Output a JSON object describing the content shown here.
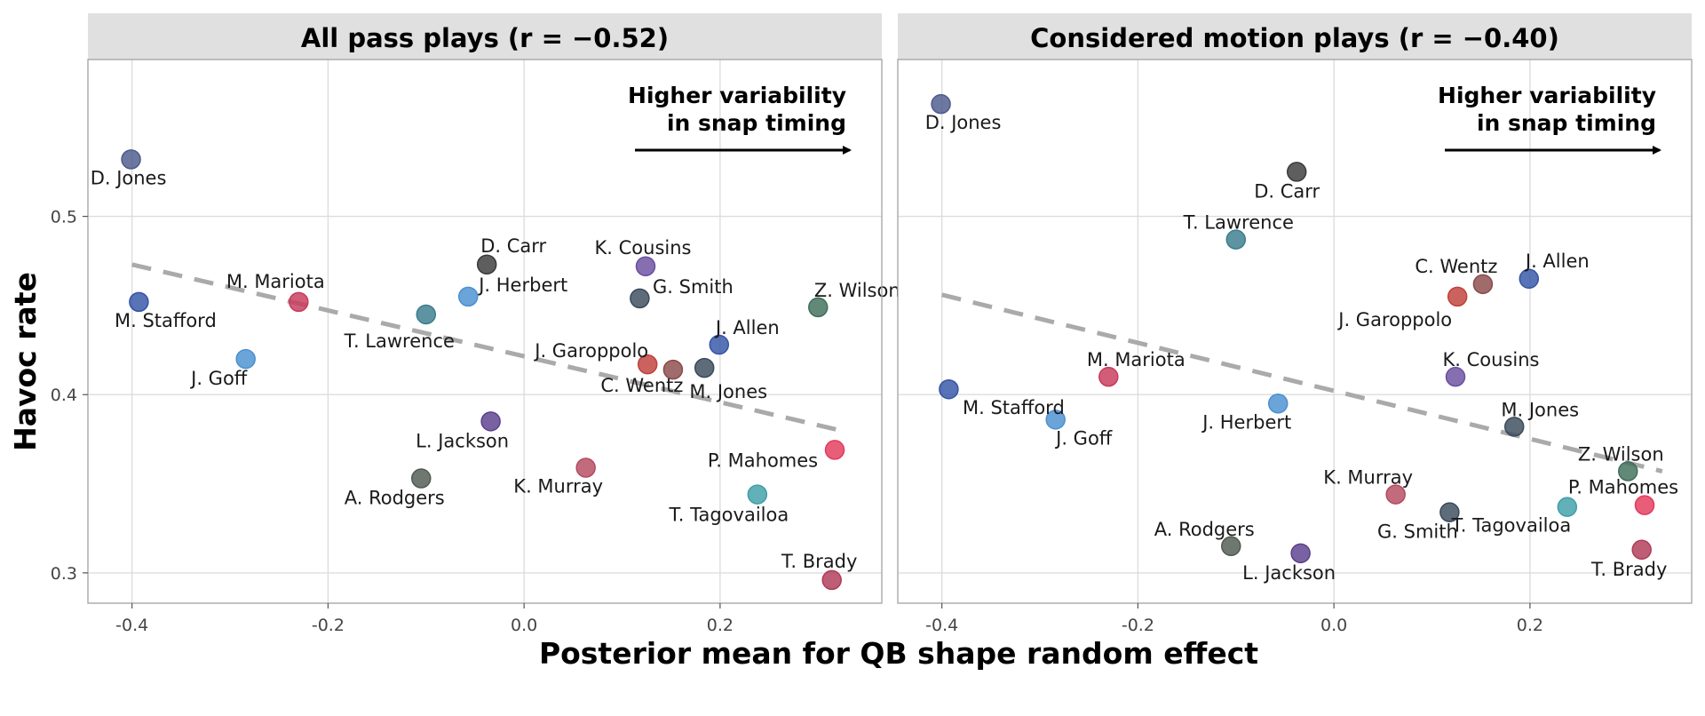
{
  "chart_data": [
    {
      "type": "scatter",
      "title": "All pass plays (r = −0.52)",
      "xlabel": "Posterior mean for QB shape random effect",
      "ylabel": "Havoc rate",
      "xlim": [
        -0.445,
        0.365
      ],
      "ylim": [
        0.283,
        0.588
      ],
      "x_ticks": [
        "-0.4",
        "-0.2",
        "0.0",
        "0.2"
      ],
      "y_ticks": [
        "0.3",
        "0.4",
        "0.5"
      ],
      "grid": true,
      "annotation": [
        "Higher variability",
        "in snap timing"
      ],
      "trend_line": {
        "style": "dashed",
        "x": [
          -0.4,
          0.33
        ],
        "y": [
          0.473,
          0.379
        ]
      },
      "points": [
        {
          "label": "D. Jones",
          "x": -0.401,
          "y": 0.532,
          "color": "#4d5a8c"
        },
        {
          "label": "M. Stafford",
          "x": -0.393,
          "y": 0.452,
          "color": "#3354a6"
        },
        {
          "label": "M. Mariota",
          "x": -0.23,
          "y": 0.452,
          "color": "#c8395a"
        },
        {
          "label": "J. Goff",
          "x": -0.284,
          "y": 0.42,
          "color": "#4a90d0"
        },
        {
          "label": "T. Lawrence",
          "x": -0.1,
          "y": 0.445,
          "color": "#3a7d8c"
        },
        {
          "label": "J. Herbert",
          "x": -0.057,
          "y": 0.455,
          "color": "#4a90d0"
        },
        {
          "label": "D. Carr",
          "x": -0.038,
          "y": 0.473,
          "color": "#3a3a3a"
        },
        {
          "label": "K. Cousins",
          "x": 0.124,
          "y": 0.472,
          "color": "#6a4fa0"
        },
        {
          "label": "G. Smith",
          "x": 0.118,
          "y": 0.454,
          "color": "#3a4a5c"
        },
        {
          "label": "Z. Wilson",
          "x": 0.3,
          "y": 0.449,
          "color": "#3f6e5a"
        },
        {
          "label": "J. Allen",
          "x": 0.199,
          "y": 0.428,
          "color": "#3354a6"
        },
        {
          "label": "J. Garoppolo",
          "x": 0.126,
          "y": 0.417,
          "color": "#c0403a"
        },
        {
          "label": "C. Wentz",
          "x": 0.152,
          "y": 0.414,
          "color": "#8a4a4a"
        },
        {
          "label": "M. Jones",
          "x": 0.184,
          "y": 0.415,
          "color": "#3a4a5c"
        },
        {
          "label": "L. Jackson",
          "x": -0.034,
          "y": 0.385,
          "color": "#5a3f8c"
        },
        {
          "label": "A. Rodgers",
          "x": -0.105,
          "y": 0.353,
          "color": "#4f5a50"
        },
        {
          "label": "K. Murray",
          "x": 0.063,
          "y": 0.359,
          "color": "#b54a60"
        },
        {
          "label": "P. Mahomes",
          "x": 0.317,
          "y": 0.369,
          "color": "#e33a5c"
        },
        {
          "label": "T. Tagovailoa",
          "x": 0.238,
          "y": 0.344,
          "color": "#3f9fa8"
        },
        {
          "label": "T. Brady",
          "x": 0.314,
          "y": 0.296,
          "color": "#b03a55"
        }
      ]
    },
    {
      "type": "scatter",
      "title": "Considered motion plays (r = −0.40)",
      "xlabel": "Posterior mean for QB shape random effect",
      "ylabel": "Havoc rate",
      "xlim": [
        -0.445,
        0.365
      ],
      "ylim": [
        0.283,
        0.588
      ],
      "x_ticks": [
        "-0.4",
        "-0.2",
        "0.0",
        "0.2"
      ],
      "y_ticks": [],
      "grid": true,
      "annotation": [
        "Higher variability",
        "in snap timing"
      ],
      "trend_line": {
        "style": "dashed",
        "x": [
          -0.4,
          0.335
        ],
        "y": [
          0.456,
          0.357
        ]
      },
      "points": [
        {
          "label": "D. Jones",
          "x": -0.401,
          "y": 0.563,
          "color": "#4d5a8c"
        },
        {
          "label": "D. Carr",
          "x": -0.038,
          "y": 0.525,
          "color": "#3a3a3a"
        },
        {
          "label": "T. Lawrence",
          "x": -0.1,
          "y": 0.487,
          "color": "#3a7d8c"
        },
        {
          "label": "J. Allen",
          "x": 0.199,
          "y": 0.465,
          "color": "#3354a6"
        },
        {
          "label": "C. Wentz",
          "x": 0.152,
          "y": 0.462,
          "color": "#8a4a4a"
        },
        {
          "label": "J. Garoppolo",
          "x": 0.126,
          "y": 0.455,
          "color": "#c0403a"
        },
        {
          "label": "K. Cousins",
          "x": 0.124,
          "y": 0.41,
          "color": "#6a4fa0"
        },
        {
          "label": "M. Mariota",
          "x": -0.23,
          "y": 0.41,
          "color": "#c8395a"
        },
        {
          "label": "M. Stafford",
          "x": -0.393,
          "y": 0.403,
          "color": "#3354a6"
        },
        {
          "label": "J. Goff",
          "x": -0.284,
          "y": 0.386,
          "color": "#4a90d0"
        },
        {
          "label": "J. Herbert",
          "x": -0.057,
          "y": 0.395,
          "color": "#4a90d0"
        },
        {
          "label": "M. Jones",
          "x": 0.184,
          "y": 0.382,
          "color": "#3a4a5c"
        },
        {
          "label": "Z. Wilson",
          "x": 0.3,
          "y": 0.357,
          "color": "#3f6e5a"
        },
        {
          "label": "P. Mahomes",
          "x": 0.317,
          "y": 0.338,
          "color": "#e33a5c"
        },
        {
          "label": "T. Tagovailoa",
          "x": 0.238,
          "y": 0.337,
          "color": "#3f9fa8"
        },
        {
          "label": "K. Murray",
          "x": 0.063,
          "y": 0.344,
          "color": "#b54a60"
        },
        {
          "label": "G. Smith",
          "x": 0.118,
          "y": 0.334,
          "color": "#3a4a5c"
        },
        {
          "label": "A. Rodgers",
          "x": -0.105,
          "y": 0.315,
          "color": "#4f5a50"
        },
        {
          "label": "L. Jackson",
          "x": -0.034,
          "y": 0.311,
          "color": "#5a3f8c"
        },
        {
          "label": "T. Brady",
          "x": 0.314,
          "y": 0.313,
          "color": "#b03a55"
        }
      ]
    }
  ],
  "axis_titles": {
    "x": "Posterior mean for QB shape random effect",
    "y": "Havoc rate"
  },
  "colors": {
    "strip_background": "#e0e0e0",
    "grid": "#dddddd",
    "panel_border": "#a8a8a8",
    "trend_line": "#aaaaaa"
  }
}
